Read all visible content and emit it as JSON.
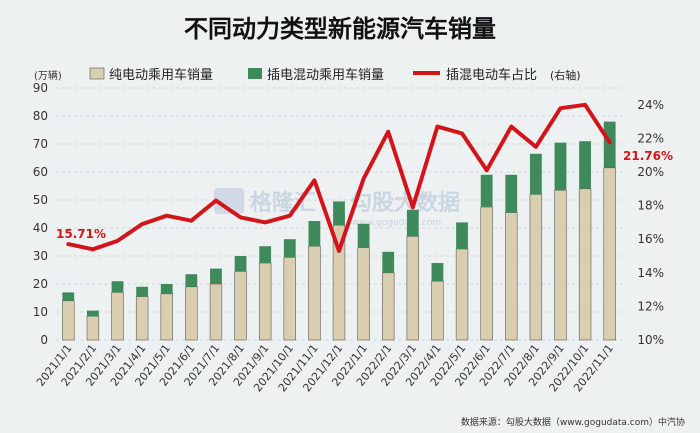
{
  "chart_data": {
    "type": "bar+line",
    "title": "不同动力类型新能源汽车销量",
    "unit_left": "(万辆)",
    "categories": [
      "2021/1/1",
      "2021/2/1",
      "2021/3/1",
      "2021/4/1",
      "2021/5/1",
      "2021/6/1",
      "2021/7/1",
      "2021/8/1",
      "2021/9/1",
      "2021/10/1",
      "2021/11/1",
      "2021/12/1",
      "2022/1/1",
      "2022/2/1",
      "2022/3/1",
      "2022/4/1",
      "2022/5/1",
      "2022/6/1",
      "2022/7/1",
      "2022/8/1",
      "2022/9/1",
      "2022/10/1",
      "2022/11/1"
    ],
    "series": [
      {
        "name": "纯电动乘用车销量",
        "axis": "left",
        "color": "#d9cfb0",
        "values": [
          14,
          8.5,
          17,
          15.5,
          16.5,
          19,
          20,
          24.5,
          27.5,
          29.5,
          33.5,
          41,
          33,
          24,
          37,
          21,
          32.5,
          47.5,
          45.5,
          52,
          53.5,
          54,
          61.5
        ]
      },
      {
        "name": "插电混动乘用车销量",
        "axis": "left",
        "color": "#3f8a5c",
        "values": [
          3,
          2,
          4,
          3.5,
          3.5,
          4.5,
          5.5,
          5.5,
          6,
          6.5,
          9,
          8.5,
          8.5,
          7.5,
          9.5,
          6.5,
          9.5,
          11.5,
          13.5,
          14.5,
          17,
          17,
          16.5
        ]
      },
      {
        "name": "插混电动车占比",
        "axis": "right",
        "color": "#d4141b",
        "legend_note": "(右轴)",
        "values": [
          15.71,
          15.4,
          15.9,
          16.9,
          17.4,
          17.1,
          18.3,
          17.3,
          17.0,
          17.4,
          19.5,
          15.3,
          19.6,
          22.4,
          17.9,
          22.7,
          22.3,
          20.1,
          22.7,
          21.5,
          23.8,
          24.0,
          21.76
        ]
      }
    ],
    "y_left": {
      "min": 0,
      "max": 90,
      "ticks": [
        0,
        10,
        20,
        30,
        40,
        50,
        60,
        70,
        80,
        90
      ]
    },
    "y_right": {
      "min": 10,
      "max": 25,
      "ticks": [
        "10%",
        "12%",
        "14%",
        "16%",
        "18%",
        "20%",
        "22%",
        "24%"
      ]
    },
    "annotations": {
      "first": "15.71%",
      "last": "21.76%"
    },
    "source_text": "数据来源：勾股大数据（www.gogudata.com）中汽协",
    "watermark": {
      "brand_a": "格隆汇",
      "brand_b": "勾股大数据",
      "url": "www.gogudata.com"
    },
    "grid": true,
    "legend": "top"
  }
}
